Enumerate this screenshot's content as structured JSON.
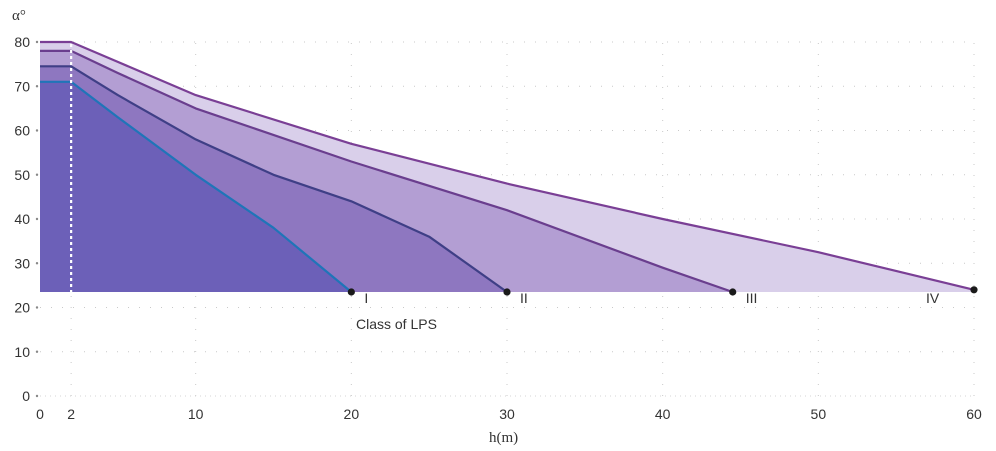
{
  "chart_data": {
    "type": "area",
    "xlabel": "h(m)",
    "ylabel": "α°",
    "xlim": [
      0,
      60
    ],
    "ylim": [
      0,
      80
    ],
    "x_ticks": [
      "0",
      "2",
      "10",
      "20",
      "30",
      "40",
      "50",
      "60"
    ],
    "y_ticks": [
      "0",
      "10",
      "20",
      "30",
      "40",
      "50",
      "60",
      "70",
      "80"
    ],
    "grid": true,
    "annotation": "Class of LPS",
    "series": [
      {
        "name": "IV",
        "color_fill": "#d9cfea",
        "color_line": "#7a3f95",
        "points": [
          [
            0,
            80
          ],
          [
            2,
            80
          ],
          [
            5,
            75.5
          ],
          [
            10,
            68
          ],
          [
            20,
            57
          ],
          [
            30,
            48
          ],
          [
            40,
            40
          ],
          [
            50,
            32.5
          ],
          [
            60,
            24
          ]
        ]
      },
      {
        "name": "III",
        "color_fill": "#b39ed3",
        "color_line": "#6a3e8e",
        "points": [
          [
            0,
            78
          ],
          [
            2,
            78
          ],
          [
            5,
            73
          ],
          [
            10,
            65
          ],
          [
            20,
            53
          ],
          [
            30,
            42
          ],
          [
            40,
            29
          ],
          [
            44.5,
            23.5
          ]
        ]
      },
      {
        "name": "II",
        "color_fill": "#8e77c0",
        "color_line": "#3f3f86",
        "points": [
          [
            0,
            74.5
          ],
          [
            2,
            74.5
          ],
          [
            5,
            68
          ],
          [
            10,
            58
          ],
          [
            15,
            50
          ],
          [
            20,
            44
          ],
          [
            25,
            36
          ],
          [
            30,
            23.5
          ]
        ]
      },
      {
        "name": "I",
        "color_fill": "#6c60b8",
        "color_line": "#1f75b8",
        "points": [
          [
            0,
            71
          ],
          [
            2,
            71
          ],
          [
            5,
            63
          ],
          [
            10,
            50
          ],
          [
            15,
            38
          ],
          [
            20,
            23.5
          ]
        ]
      }
    ]
  }
}
